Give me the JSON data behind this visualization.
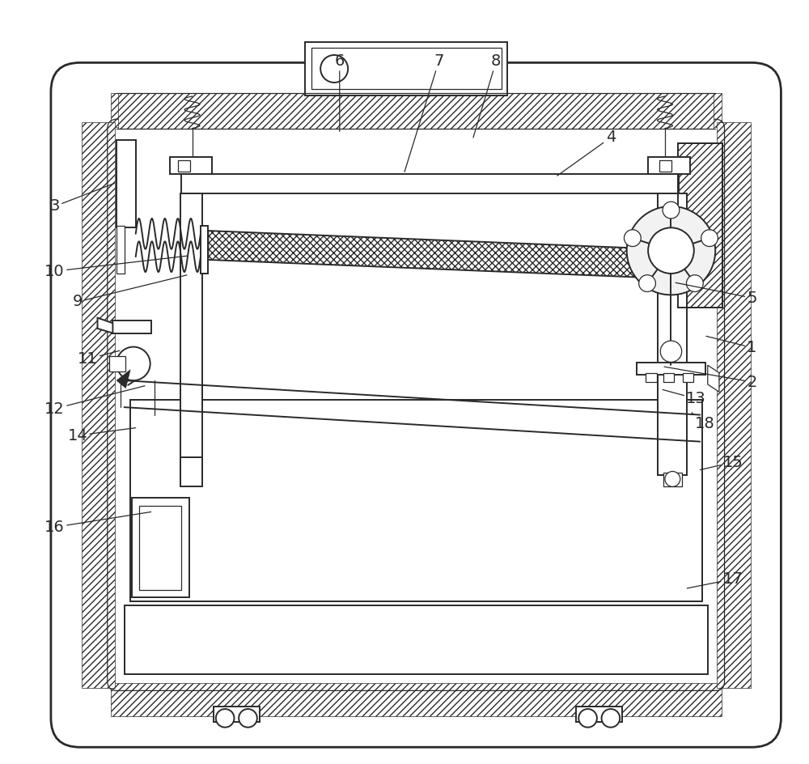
{
  "bg_color": "#ffffff",
  "lc": "#2a2a2a",
  "lw_main": 1.4,
  "lw_thick": 2.0,
  "lw_thin": 0.9,
  "figsize": [
    10.0,
    9.44
  ],
  "dpi": 100,
  "annotations": [
    [
      "1",
      [
        0.955,
        0.545
      ],
      [
        0.895,
        0.56
      ]
    ],
    [
      "2",
      [
        0.955,
        0.5
      ],
      [
        0.84,
        0.52
      ]
    ],
    [
      "3",
      [
        0.042,
        0.73
      ],
      [
        0.12,
        0.76
      ]
    ],
    [
      "4",
      [
        0.77,
        0.82
      ],
      [
        0.7,
        0.77
      ]
    ],
    [
      "5",
      [
        0.955,
        0.61
      ],
      [
        0.855,
        0.63
      ]
    ],
    [
      "6",
      [
        0.415,
        0.92
      ],
      [
        0.415,
        0.828
      ]
    ],
    [
      "7",
      [
        0.545,
        0.92
      ],
      [
        0.5,
        0.775
      ]
    ],
    [
      "8",
      [
        0.62,
        0.92
      ],
      [
        0.59,
        0.82
      ]
    ],
    [
      "9",
      [
        0.072,
        0.605
      ],
      [
        0.215,
        0.64
      ]
    ],
    [
      "10",
      [
        0.042,
        0.645
      ],
      [
        0.215,
        0.665
      ]
    ],
    [
      "11",
      [
        0.085,
        0.53
      ],
      [
        0.127,
        0.541
      ]
    ],
    [
      "12",
      [
        0.042,
        0.465
      ],
      [
        0.16,
        0.495
      ]
    ],
    [
      "13",
      [
        0.882,
        0.478
      ],
      [
        0.838,
        0.49
      ]
    ],
    [
      "14",
      [
        0.072,
        0.43
      ],
      [
        0.148,
        0.44
      ]
    ],
    [
      "15",
      [
        0.93,
        0.395
      ],
      [
        0.887,
        0.385
      ]
    ],
    [
      "16",
      [
        0.042,
        0.31
      ],
      [
        0.168,
        0.33
      ]
    ],
    [
      "17",
      [
        0.93,
        0.242
      ],
      [
        0.87,
        0.23
      ]
    ],
    [
      "18",
      [
        0.893,
        0.445
      ],
      [
        0.876,
        0.46
      ]
    ]
  ]
}
